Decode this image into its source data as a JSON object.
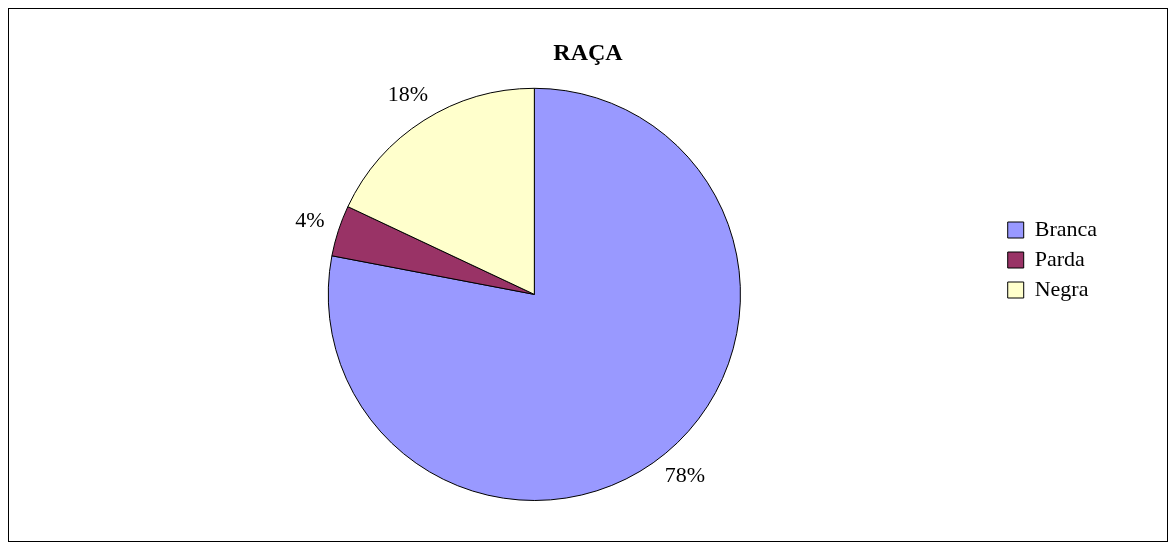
{
  "chart_data": {
    "type": "pie",
    "title": "RAÇA",
    "categories": [
      "Branca",
      "Parda",
      "Negra"
    ],
    "values": [
      78,
      4,
      18
    ],
    "colors": [
      "#9999ff",
      "#993366",
      "#ffffcc"
    ],
    "value_labels": [
      "78%",
      "4%",
      "18%"
    ],
    "legend": "right"
  }
}
